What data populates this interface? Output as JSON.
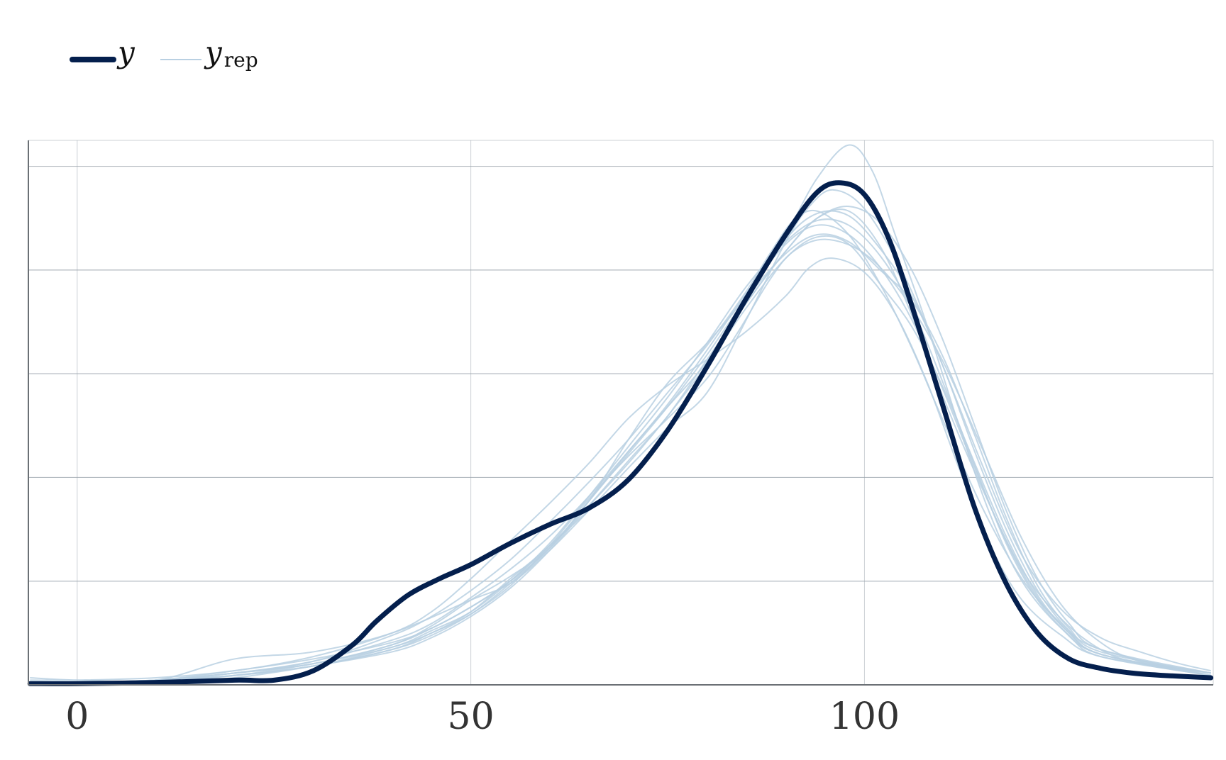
{
  "colors": {
    "observed": "#041f4d",
    "replicated": "#b9d0e2",
    "grid": "#9aa3ab",
    "axis": "#6b7075",
    "background": "#ffffff"
  },
  "chart_data": {
    "type": "line",
    "title": "",
    "xlabel": "",
    "ylabel": "",
    "xlim": [
      -6.2,
      144.3
    ],
    "ylim": [
      0,
      0.0231
    ],
    "x_ticks": [
      0,
      50,
      100
    ],
    "x_tick_labels": [
      "0",
      "50",
      "100"
    ],
    "y_gridlines": [
      0,
      0.0044,
      0.0088,
      0.0132,
      0.0176,
      0.022
    ],
    "y_tick_labels_shown": false,
    "grid": true,
    "legend": {
      "position": "top-left",
      "entries": [
        {
          "label": "y",
          "subscript": ""
        },
        {
          "label": "y",
          "subscript": "rep"
        }
      ]
    },
    "series": [
      {
        "name": "y",
        "role": "observed",
        "x": [
          -6,
          0,
          10,
          20,
          25,
          30,
          35,
          38,
          42,
          46,
          50,
          55,
          60,
          65,
          70,
          75,
          80,
          85,
          90,
          94,
          97,
          100,
          103,
          106,
          110,
          114,
          118,
          122,
          126,
          130,
          134,
          138,
          144
        ],
        "y": [
          5e-05,
          5e-05,
          0.0001,
          0.0002,
          0.0002,
          0.0006,
          0.0017,
          0.0027,
          0.0038,
          0.0045,
          0.0051,
          0.006,
          0.0068,
          0.0075,
          0.0087,
          0.0108,
          0.0135,
          0.0164,
          0.0191,
          0.0209,
          0.0213,
          0.0208,
          0.019,
          0.0161,
          0.0118,
          0.0075,
          0.0043,
          0.0022,
          0.0011,
          0.0007,
          0.0005,
          0.0004,
          0.0003
        ]
      },
      {
        "role": "replicated",
        "x": [
          -6,
          0,
          10,
          20,
          30,
          40,
          50,
          55,
          60,
          65,
          70,
          75,
          80,
          85,
          90,
          93,
          96,
          100,
          105,
          110,
          115,
          120,
          125,
          130,
          135,
          140,
          144
        ],
        "y": [
          0.0003,
          0.0002,
          0.0002,
          0.0011,
          0.0014,
          0.0022,
          0.0036,
          0.0043,
          0.0057,
          0.0074,
          0.0092,
          0.0109,
          0.0124,
          0.0155,
          0.0188,
          0.0203,
          0.021,
          0.0202,
          0.0174,
          0.0135,
          0.0093,
          0.0055,
          0.0032,
          0.002,
          0.0014,
          0.0009,
          0.0006
        ]
      },
      {
        "role": "replicated",
        "x": [
          -6,
          0,
          10,
          20,
          30,
          40,
          45,
          50,
          55,
          60,
          65,
          70,
          75,
          80,
          85,
          90,
          94,
          98,
          102,
          106,
          110,
          115,
          120,
          125,
          130,
          135,
          144
        ],
        "y": [
          0.0001,
          0.0001,
          0.0002,
          0.0005,
          0.0009,
          0.0017,
          0.0025,
          0.0036,
          0.0046,
          0.0058,
          0.0078,
          0.0099,
          0.0118,
          0.0137,
          0.0162,
          0.0184,
          0.0198,
          0.0201,
          0.0186,
          0.0157,
          0.0122,
          0.0083,
          0.0049,
          0.0028,
          0.0015,
          0.0009,
          0.0004
        ]
      },
      {
        "role": "replicated",
        "x": [
          -6,
          0,
          10,
          20,
          30,
          40,
          45,
          50,
          55,
          60,
          65,
          70,
          75,
          80,
          84,
          88,
          91,
          95,
          100,
          105,
          110,
          115,
          120,
          125,
          130,
          135,
          144
        ],
        "y": [
          0.0001,
          0.0001,
          0.0001,
          0.0004,
          0.0008,
          0.0015,
          0.0021,
          0.003,
          0.0042,
          0.0059,
          0.0079,
          0.0097,
          0.0113,
          0.013,
          0.015,
          0.0172,
          0.0184,
          0.0189,
          0.0183,
          0.0165,
          0.0137,
          0.01,
          0.0062,
          0.0034,
          0.0018,
          0.001,
          0.0005
        ]
      },
      {
        "role": "replicated",
        "x": [
          -6,
          0,
          10,
          20,
          30,
          40,
          45,
          50,
          55,
          60,
          65,
          70,
          75,
          80,
          85,
          88,
          91,
          94,
          98,
          102,
          106,
          110,
          115,
          120,
          125,
          130,
          144
        ],
        "y": [
          0.0001,
          0.0001,
          0.0002,
          0.0005,
          0.001,
          0.0021,
          0.0029,
          0.004,
          0.0053,
          0.0069,
          0.0086,
          0.0104,
          0.0124,
          0.0144,
          0.0167,
          0.0183,
          0.0197,
          0.0201,
          0.0191,
          0.017,
          0.0143,
          0.0112,
          0.0075,
          0.0045,
          0.0026,
          0.0015,
          0.0005
        ]
      },
      {
        "role": "replicated",
        "x": [
          -6,
          0,
          10,
          20,
          30,
          40,
          45,
          50,
          55,
          60,
          65,
          70,
          75,
          80,
          85,
          90,
          94,
          98,
          101,
          104,
          108,
          112,
          116,
          120,
          125,
          130,
          144
        ],
        "y": [
          0.0001,
          0.0001,
          0.0002,
          0.0006,
          0.0011,
          0.0018,
          0.0024,
          0.0033,
          0.0044,
          0.0058,
          0.0078,
          0.0104,
          0.0128,
          0.0145,
          0.0165,
          0.0191,
          0.0215,
          0.0229,
          0.0218,
          0.019,
          0.0152,
          0.011,
          0.0072,
          0.0044,
          0.0024,
          0.0013,
          0.0005
        ]
      },
      {
        "role": "replicated",
        "x": [
          -6,
          0,
          10,
          20,
          30,
          40,
          45,
          50,
          55,
          60,
          65,
          70,
          75,
          80,
          85,
          90,
          94,
          98,
          102,
          106,
          110,
          114,
          118,
          122,
          126,
          130,
          144
        ],
        "y": [
          0.0001,
          0.0001,
          0.0002,
          0.0005,
          0.0009,
          0.0017,
          0.0024,
          0.0033,
          0.0044,
          0.0059,
          0.0074,
          0.0088,
          0.0108,
          0.0136,
          0.0164,
          0.0189,
          0.02,
          0.0199,
          0.0185,
          0.0165,
          0.0135,
          0.0099,
          0.0066,
          0.004,
          0.0023,
          0.0013,
          0.0004
        ]
      },
      {
        "role": "replicated",
        "x": [
          -6,
          0,
          10,
          20,
          30,
          40,
          45,
          50,
          55,
          60,
          65,
          70,
          75,
          80,
          85,
          90,
          93,
          96,
          100,
          104,
          108,
          112,
          116,
          120,
          125,
          130,
          144
        ],
        "y": [
          0.0002,
          0.0002,
          0.0003,
          0.0006,
          0.0012,
          0.0022,
          0.0031,
          0.0045,
          0.0061,
          0.0077,
          0.0094,
          0.0113,
          0.0127,
          0.0138,
          0.015,
          0.0165,
          0.0177,
          0.0181,
          0.0175,
          0.0157,
          0.0128,
          0.0092,
          0.0059,
          0.0036,
          0.0021,
          0.0012,
          0.0005
        ]
      },
      {
        "role": "replicated",
        "x": [
          -6,
          0,
          10,
          20,
          30,
          40,
          45,
          50,
          55,
          60,
          65,
          70,
          75,
          80,
          85,
          90,
          94,
          98,
          102,
          106,
          110,
          114,
          118,
          122,
          126,
          130,
          144
        ],
        "y": [
          0.0001,
          0.0001,
          0.0002,
          0.0004,
          0.0009,
          0.0016,
          0.0023,
          0.0031,
          0.0044,
          0.006,
          0.008,
          0.0101,
          0.0122,
          0.0145,
          0.0169,
          0.0188,
          0.0197,
          0.0195,
          0.0182,
          0.016,
          0.0128,
          0.0093,
          0.006,
          0.0036,
          0.0021,
          0.0012,
          0.0004
        ]
      },
      {
        "role": "replicated",
        "x": [
          -6,
          0,
          10,
          20,
          30,
          40,
          45,
          50,
          55,
          60,
          65,
          70,
          75,
          80,
          85,
          90,
          94,
          98,
          102,
          106,
          110,
          114,
          118,
          122,
          126,
          130,
          144
        ],
        "y": [
          0.0001,
          0.0001,
          0.0001,
          0.0003,
          0.0008,
          0.0014,
          0.002,
          0.0029,
          0.0041,
          0.0057,
          0.0076,
          0.0095,
          0.0114,
          0.0138,
          0.0162,
          0.0184,
          0.0198,
          0.0203,
          0.0196,
          0.0176,
          0.0146,
          0.011,
          0.0074,
          0.0045,
          0.0026,
          0.0015,
          0.0004
        ]
      },
      {
        "role": "replicated",
        "x": [
          -6,
          0,
          10,
          20,
          30,
          40,
          45,
          50,
          55,
          60,
          65,
          70,
          75,
          80,
          85,
          90,
          94,
          98,
          102,
          106,
          110,
          114,
          118,
          122,
          126,
          130,
          144
        ],
        "y": [
          0.0001,
          0.0001,
          0.0002,
          0.0005,
          0.001,
          0.0019,
          0.0026,
          0.0037,
          0.0049,
          0.0063,
          0.008,
          0.0099,
          0.0119,
          0.0142,
          0.0166,
          0.0187,
          0.0195,
          0.0191,
          0.0177,
          0.0155,
          0.0125,
          0.0092,
          0.0061,
          0.0037,
          0.0022,
          0.0013,
          0.0004
        ]
      },
      {
        "role": "replicated",
        "x": [
          -6,
          0,
          10,
          20,
          30,
          40,
          45,
          50,
          55,
          60,
          65,
          70,
          75,
          80,
          85,
          90,
          94,
          98,
          102,
          106,
          110,
          114,
          118,
          122,
          126,
          130,
          144
        ],
        "y": [
          0.0001,
          0.0001,
          0.0002,
          0.0004,
          0.0008,
          0.0015,
          0.0022,
          0.003,
          0.0043,
          0.0058,
          0.0078,
          0.0098,
          0.0118,
          0.014,
          0.0164,
          0.0183,
          0.0191,
          0.0188,
          0.0176,
          0.0163,
          0.0139,
          0.0106,
          0.0071,
          0.0042,
          0.0024,
          0.0014,
          0.0005
        ]
      },
      {
        "role": "replicated",
        "x": [
          -6,
          0,
          10,
          20,
          30,
          40,
          45,
          50,
          55,
          60,
          65,
          70,
          75,
          80,
          85,
          90,
          94,
          98,
          102,
          106,
          110,
          114,
          118,
          122,
          126,
          130,
          144
        ],
        "y": [
          0.0001,
          0.0001,
          0.0002,
          0.0004,
          0.0008,
          0.0016,
          0.0022,
          0.0031,
          0.0045,
          0.0059,
          0.0076,
          0.0094,
          0.0114,
          0.0136,
          0.016,
          0.0181,
          0.019,
          0.0187,
          0.017,
          0.0152,
          0.0126,
          0.0094,
          0.0063,
          0.0038,
          0.0022,
          0.0013,
          0.0004
        ]
      }
    ]
  }
}
